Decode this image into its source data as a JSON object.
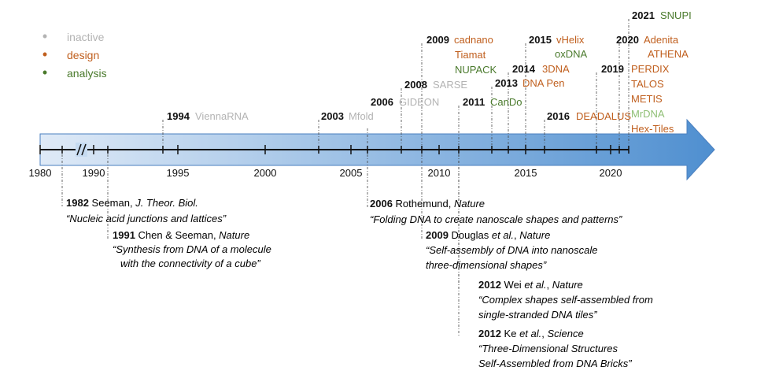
{
  "colors": {
    "inactive": "#b3b3b3",
    "design": "#c05f1e",
    "analysis": "#4a7a2c",
    "mrdna": "#8fbf74",
    "arrow_light": "#dfeaf7",
    "arrow_dark": "#4f8fd0",
    "arrow_edge": "#4a7fbf"
  },
  "legend": [
    {
      "label": "inactive",
      "color": "inactive"
    },
    {
      "label": "design",
      "color": "design"
    },
    {
      "label": "analysis",
      "color": "analysis"
    }
  ],
  "axis": {
    "break_mark": "//",
    "ticks": [
      {
        "label": "1980"
      },
      {
        "label": "1990"
      },
      {
        "label": "1995"
      },
      {
        "label": "2000"
      },
      {
        "label": "2005"
      },
      {
        "label": "2010"
      },
      {
        "label": "2015"
      },
      {
        "label": "2020"
      }
    ]
  },
  "software": [
    {
      "year": "1994",
      "lines": [
        {
          "name": "ViennaRNA",
          "color": "inactive"
        }
      ]
    },
    {
      "year": "2003",
      "lines": [
        {
          "name": "Mfold",
          "color": "inactive"
        }
      ]
    },
    {
      "year": "2006",
      "lines": [
        {
          "name": "GIDEON",
          "color": "inactive"
        }
      ]
    },
    {
      "year": "2008",
      "lines": [
        {
          "name": "SARSE",
          "color": "inactive"
        }
      ]
    },
    {
      "year": "2009",
      "lines": [
        {
          "name": "cadnano",
          "color": "design"
        },
        {
          "name": "Tiamat",
          "color": "design"
        },
        {
          "name": "NUPACK",
          "color": "analysis"
        }
      ]
    },
    {
      "year": "2011",
      "lines": [
        {
          "name": "CanDo",
          "color": "analysis"
        }
      ]
    },
    {
      "year": "2013",
      "lines": [
        {
          "name": "DNA Pen",
          "color": "design"
        }
      ]
    },
    {
      "year": "2014",
      "lines": [
        {
          "name": "3DNA",
          "color": "design"
        }
      ]
    },
    {
      "year": "2015",
      "lines": [
        {
          "name": "vHelix",
          "color": "design"
        },
        {
          "name": "oxDNA",
          "color": "analysis"
        }
      ]
    },
    {
      "year": "2016",
      "lines": [
        {
          "name": "DEADALUS",
          "color": "design"
        }
      ]
    },
    {
      "year": "2019",
      "lines": [
        {
          "name": "PERDIX",
          "color": "design"
        },
        {
          "name": "TALOS",
          "color": "design"
        },
        {
          "name": "METIS",
          "color": "design"
        },
        {
          "name": "MrDNA",
          "color": "mrdna"
        },
        {
          "name": "Hex-Tiles",
          "color": "design"
        }
      ]
    },
    {
      "year": "2020",
      "lines": [
        {
          "name": "Adenita",
          "color": "design"
        },
        {
          "name": "ATHENA",
          "color": "design"
        }
      ]
    },
    {
      "year": "2021",
      "lines": [
        {
          "name": "SNUPI",
          "color": "analysis"
        }
      ]
    }
  ],
  "papers": [
    {
      "year": "1982",
      "head": [
        {
          "t": "Seeman, "
        },
        {
          "t": "J. Theor. Biol.",
          "i": true
        }
      ],
      "quote": [
        "“Nucleic acid junctions and lattices”"
      ]
    },
    {
      "year": "1991",
      "head": [
        {
          "t": "Chen & Seeman, "
        },
        {
          "t": "Nature",
          "i": true
        }
      ],
      "quote": [
        "“Synthesis from DNA of a molecule",
        "with the connectivity of a cube”"
      ]
    },
    {
      "year": "2006",
      "head": [
        {
          "t": "Rothemund, "
        },
        {
          "t": "Nature",
          "i": true
        }
      ],
      "quote": [
        "“Folding DNA to create nanoscale shapes and patterns”"
      ]
    },
    {
      "year": "2009",
      "head": [
        {
          "t": "Douglas "
        },
        {
          "t": "et al.",
          "i": true
        },
        {
          "t": ", "
        },
        {
          "t": "Nature",
          "i": true
        }
      ],
      "quote": [
        "“Self-assembly of DNA into nanoscale",
        "three-dimensional shapes”"
      ]
    },
    {
      "year": "2012",
      "head": [
        {
          "t": "Wei "
        },
        {
          "t": "et al.",
          "i": true
        },
        {
          "t": ", "
        },
        {
          "t": "Nature",
          "i": true
        }
      ],
      "quote": [
        "“Complex shapes self-assembled from",
        "single-stranded DNA tiles”"
      ]
    },
    {
      "year": "2012",
      "head": [
        {
          "t": "Ke "
        },
        {
          "t": "et al.",
          "i": true
        },
        {
          "t": ", "
        },
        {
          "t": "Science",
          "i": true
        }
      ],
      "quote": [
        "“Three-Dimensional Structures",
        "Self-Assembled from DNA Bricks”"
      ]
    }
  ]
}
